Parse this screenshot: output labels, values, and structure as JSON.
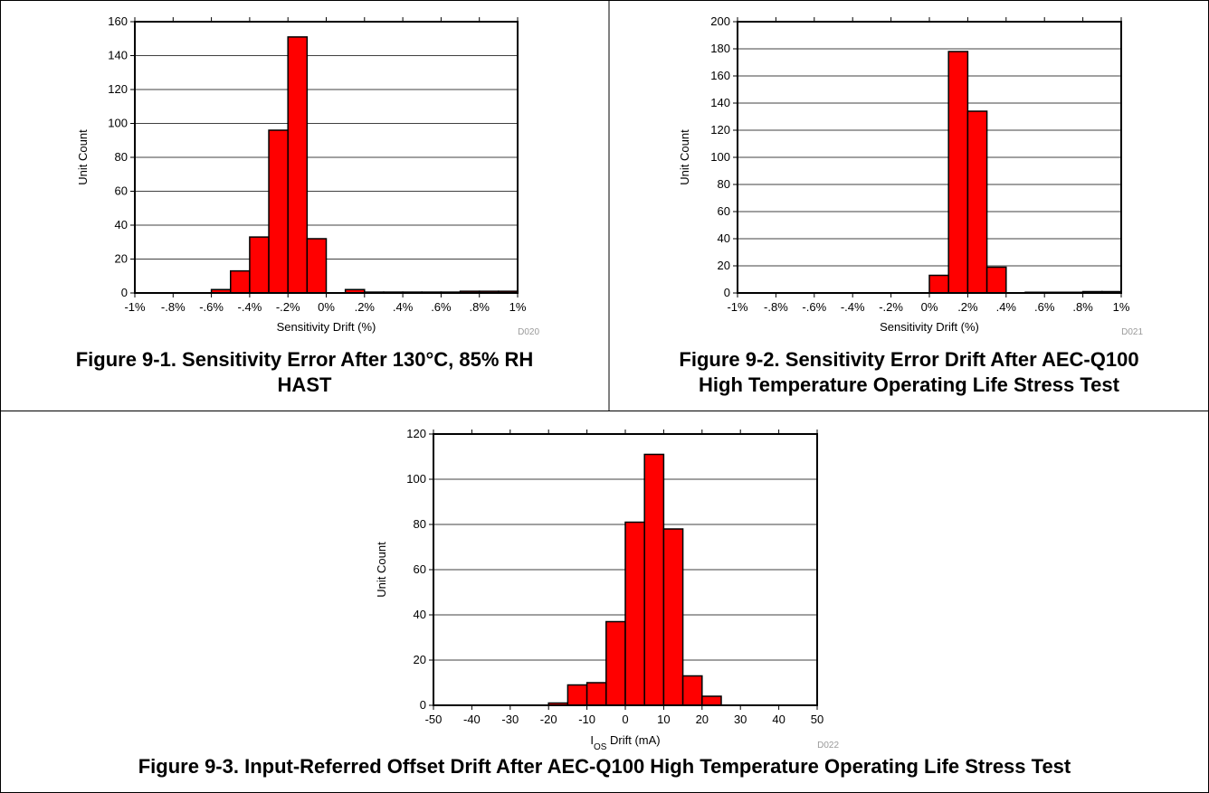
{
  "colors": {
    "bar": "#ff0000",
    "bar_stroke": "#000000",
    "grid": "#000000",
    "code": "#9a9a9a"
  },
  "chart_data": [
    {
      "id": "fig1",
      "type": "bar",
      "caption_line1": "Figure 9-1. Sensitivity Error After 130°C, 85% RH",
      "caption_line2": "HAST",
      "xlabel": "Sensitivity Drift (%)",
      "ylabel": "Unit Count",
      "code": "D020",
      "xlim": [
        -1,
        1
      ],
      "ylim": [
        0,
        160
      ],
      "yticks": [
        0,
        20,
        40,
        60,
        80,
        100,
        120,
        140,
        160
      ],
      "xticks": [
        -1,
        -0.8,
        -0.6,
        -0.4,
        -0.2,
        0,
        0.2,
        0.4,
        0.6,
        0.8,
        1
      ],
      "xtick_labels": [
        "-1%",
        "-.8%",
        "-.6%",
        "-.4%",
        "-.2%",
        "0%",
        ".2%",
        ".4%",
        ".6%",
        ".8%",
        "1%"
      ],
      "bin_width": 0.1,
      "bins": [
        {
          "x0": -0.6,
          "value": 2
        },
        {
          "x0": -0.5,
          "value": 13
        },
        {
          "x0": -0.4,
          "value": 33
        },
        {
          "x0": -0.3,
          "value": 96
        },
        {
          "x0": -0.2,
          "value": 151
        },
        {
          "x0": -0.1,
          "value": 32
        },
        {
          "x0": 0.1,
          "value": 2
        },
        {
          "x0": 0.2,
          "value": 0.5
        },
        {
          "x0": 0.3,
          "value": 0.5
        },
        {
          "x0": 0.4,
          "value": 0.5
        },
        {
          "x0": 0.5,
          "value": 0.5
        },
        {
          "x0": 0.6,
          "value": 0.5
        },
        {
          "x0": 0.7,
          "value": 1
        },
        {
          "x0": 0.8,
          "value": 1
        },
        {
          "x0": 0.9,
          "value": 1
        }
      ]
    },
    {
      "id": "fig2",
      "type": "bar",
      "caption_line1": "Figure 9-2. Sensitivity Error Drift After AEC-Q100",
      "caption_line2": "High Temperature Operating Life Stress Test",
      "xlabel": "Sensitivity Drift (%)",
      "ylabel": "Unit Count",
      "code": "D021",
      "xlim": [
        -1,
        1
      ],
      "ylim": [
        0,
        200
      ],
      "yticks": [
        0,
        20,
        40,
        60,
        80,
        100,
        120,
        140,
        160,
        180,
        200
      ],
      "xticks": [
        -1,
        -0.8,
        -0.6,
        -0.4,
        -0.2,
        0,
        0.2,
        0.4,
        0.6,
        0.8,
        1
      ],
      "xtick_labels": [
        "-1%",
        "-.8%",
        "-.6%",
        "-.4%",
        "-.2%",
        "0%",
        ".2%",
        ".4%",
        ".6%",
        ".8%",
        "1%"
      ],
      "bin_width": 0.1,
      "bins": [
        {
          "x0": 0.0,
          "value": 13
        },
        {
          "x0": 0.1,
          "value": 178
        },
        {
          "x0": 0.2,
          "value": 134
        },
        {
          "x0": 0.3,
          "value": 19
        },
        {
          "x0": 0.5,
          "value": 0.5
        },
        {
          "x0": 0.6,
          "value": 0.5
        },
        {
          "x0": 0.7,
          "value": 0.5
        },
        {
          "x0": 0.8,
          "value": 1
        },
        {
          "x0": 0.9,
          "value": 1
        }
      ]
    },
    {
      "id": "fig3",
      "type": "bar",
      "caption_line1": "Figure 9-3. Input-Referred Offset Drift After AEC-Q100 High Temperature Operating Life Stress Test",
      "caption_line2": "",
      "xlabel_main": "I",
      "xlabel_sub": "OS",
      "xlabel_rest": " Drift (mA)",
      "ylabel": "Unit Count",
      "code": "D022",
      "xlim": [
        -50,
        50
      ],
      "ylim": [
        0,
        120
      ],
      "yticks": [
        0,
        20,
        40,
        60,
        80,
        100,
        120
      ],
      "xticks": [
        -50,
        -40,
        -30,
        -20,
        -10,
        0,
        10,
        20,
        30,
        40,
        50
      ],
      "xtick_labels": [
        "-50",
        "-40",
        "-30",
        "-20",
        "-10",
        "0",
        "10",
        "20",
        "30",
        "40",
        "50"
      ],
      "bin_width": 5,
      "bins": [
        {
          "x0": -20,
          "value": 1
        },
        {
          "x0": -15,
          "value": 9
        },
        {
          "x0": -10,
          "value": 10
        },
        {
          "x0": -5,
          "value": 37
        },
        {
          "x0": 0,
          "value": 81
        },
        {
          "x0": 5,
          "value": 111
        },
        {
          "x0": 10,
          "value": 78
        },
        {
          "x0": 15,
          "value": 13
        },
        {
          "x0": 20,
          "value": 4
        }
      ]
    }
  ]
}
